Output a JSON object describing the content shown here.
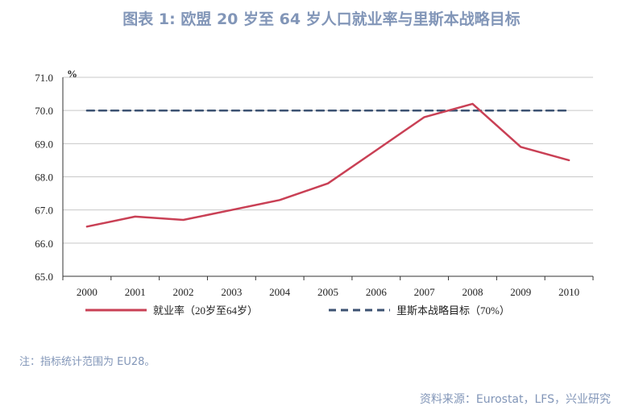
{
  "title": "图表 1: 欧盟 20 岁至 64 岁人口就业率与里斯本战略目标",
  "note": "注：指标统计范围为 EU28。",
  "source": "资料来源：Eurostat，LFS，兴业研究",
  "colors": {
    "rate": "#c94055",
    "target": "#3c5272",
    "text_accent": "#8296b8"
  },
  "chart_data": {
    "type": "line",
    "unit_label": "%",
    "categories": [
      "2000",
      "2001",
      "2002",
      "2003",
      "2004",
      "2005",
      "2006",
      "2007",
      "2008",
      "2009",
      "2010"
    ],
    "series": [
      {
        "name": "就业率（20岁至64岁）",
        "style": "solid",
        "values": [
          66.5,
          66.8,
          66.7,
          67.0,
          67.3,
          67.8,
          68.8,
          69.8,
          70.2,
          68.9,
          68.5
        ]
      },
      {
        "name": "里斯本战略目标（70%）",
        "style": "dashed",
        "values": [
          70.0,
          70.0,
          70.0,
          70.0,
          70.0,
          70.0,
          70.0,
          70.0,
          70.0,
          70.0,
          70.0
        ]
      }
    ],
    "ylim": [
      65.0,
      71.0
    ],
    "yticks": [
      "65.0",
      "66.0",
      "67.0",
      "68.0",
      "69.0",
      "70.0",
      "71.0"
    ],
    "grid": true,
    "legend_position": "bottom"
  }
}
